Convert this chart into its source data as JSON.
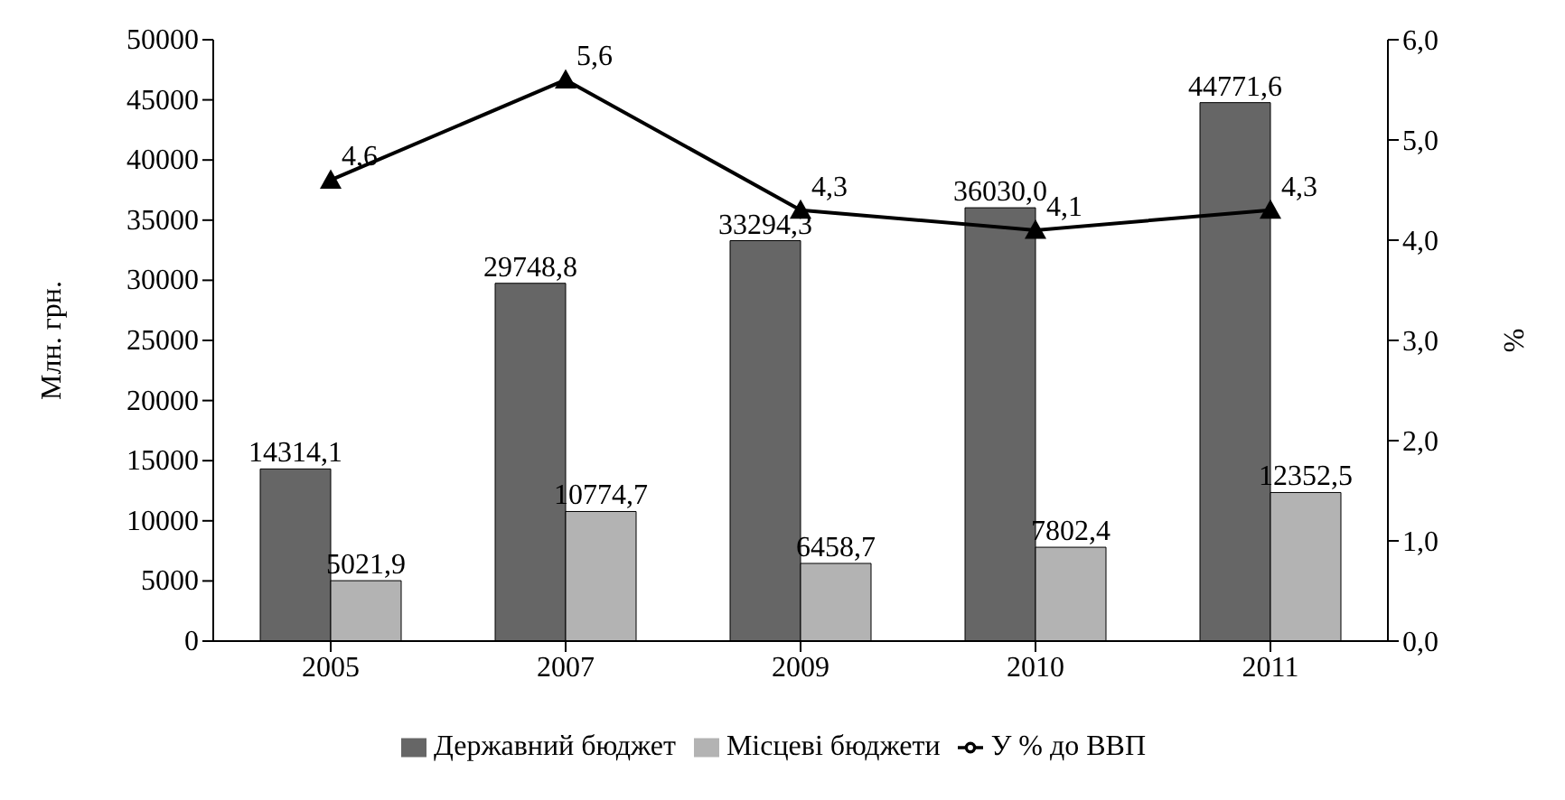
{
  "chart_data": {
    "type": "bar",
    "categories": [
      "2005",
      "2007",
      "2009",
      "2010",
      "2011"
    ],
    "series": [
      {
        "name": "Державний бюджет",
        "color": "#666666",
        "values": [
          14314.1,
          29748.8,
          33294.3,
          36030.0,
          44771.6
        ],
        "value_labels": [
          "14314,1",
          "29748,8",
          "33294,3",
          "36030,0",
          "44771,6"
        ]
      },
      {
        "name": "Місцеві бюджети",
        "color": "#b3b3b3",
        "values": [
          5021.9,
          10774.7,
          6458.7,
          7802.4,
          12352.5
        ],
        "value_labels": [
          "5021,9",
          "10774,7",
          "6458,7",
          "7802,4",
          "12352,5"
        ]
      },
      {
        "name": "У % до ВВП",
        "type": "line",
        "axis": "y2",
        "color": "#000000",
        "values": [
          4.6,
          5.6,
          4.3,
          4.1,
          4.3
        ],
        "value_labels": [
          "4,6",
          "5,6",
          "4,3",
          "4,1",
          "4,3"
        ]
      }
    ],
    "ylabel": "Млн. грн.",
    "y2label": "%",
    "ylim": [
      0,
      50000
    ],
    "yticks": [
      0,
      5000,
      10000,
      15000,
      20000,
      25000,
      30000,
      35000,
      40000,
      45000,
      50000
    ],
    "y2lim": [
      0,
      6
    ],
    "y2ticks": [
      {
        "value": 0,
        "label": "0,0"
      },
      {
        "value": 1,
        "label": "1,0"
      },
      {
        "value": 2,
        "label": "2,0"
      },
      {
        "value": 3,
        "label": "3,0"
      },
      {
        "value": 4,
        "label": "4,0"
      },
      {
        "value": 5,
        "label": "5,0"
      },
      {
        "value": 6,
        "label": "6,0"
      }
    ],
    "legend": "bottom",
    "marker": "triangle"
  }
}
